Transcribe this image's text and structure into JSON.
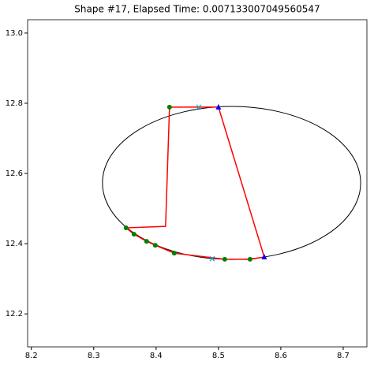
{
  "chart_data": {
    "type": "scatter",
    "title": "Shape #17, Elapsed Time: 0.007133007049560547",
    "xlim": [
      8.194,
      8.738
    ],
    "ylim": [
      12.106,
      13.038
    ],
    "xticks": [
      8.2,
      8.3,
      8.4,
      8.5,
      8.6,
      8.7
    ],
    "yticks": [
      12.2,
      12.4,
      12.6,
      12.8,
      {
        "value": 13,
        "label": "13.0"
      }
    ],
    "ellipse": {
      "cx": 8.521,
      "cy": 12.573,
      "rx": 0.207,
      "ry": 0.218,
      "color": "#000000"
    },
    "series": [
      {
        "color": "#ff0000",
        "marker": "line",
        "x": [
          8.4215,
          8.5,
          8.5734,
          8.5506,
          8.5101,
          8.4291,
          8.3987,
          8.3848,
          8.3646,
          8.3519,
          8.4152,
          8.4215
        ],
        "y": [
          12.789,
          12.789,
          12.362,
          12.3555,
          12.3555,
          12.373,
          12.3955,
          12.4067,
          12.427,
          12.445,
          12.4494,
          12.789
        ]
      },
      {
        "color": "#008000",
        "marker": "circle",
        "x": [
          8.4215,
          8.3519,
          8.3646,
          8.3848,
          8.3987,
          8.4291,
          8.5101,
          8.5506
        ],
        "y": [
          12.789,
          12.445,
          12.427,
          12.4067,
          12.3955,
          12.373,
          12.3555,
          12.3555
        ]
      },
      {
        "color": "#0000ff",
        "marker": "triangle",
        "x": [
          8.5,
          8.5734
        ],
        "y": [
          12.789,
          12.362
        ]
      },
      {
        "color": "#1f9fd4",
        "marker": "x",
        "x": [
          8.4684,
          8.4899
        ],
        "y": [
          12.789,
          12.357
        ]
      }
    ]
  }
}
